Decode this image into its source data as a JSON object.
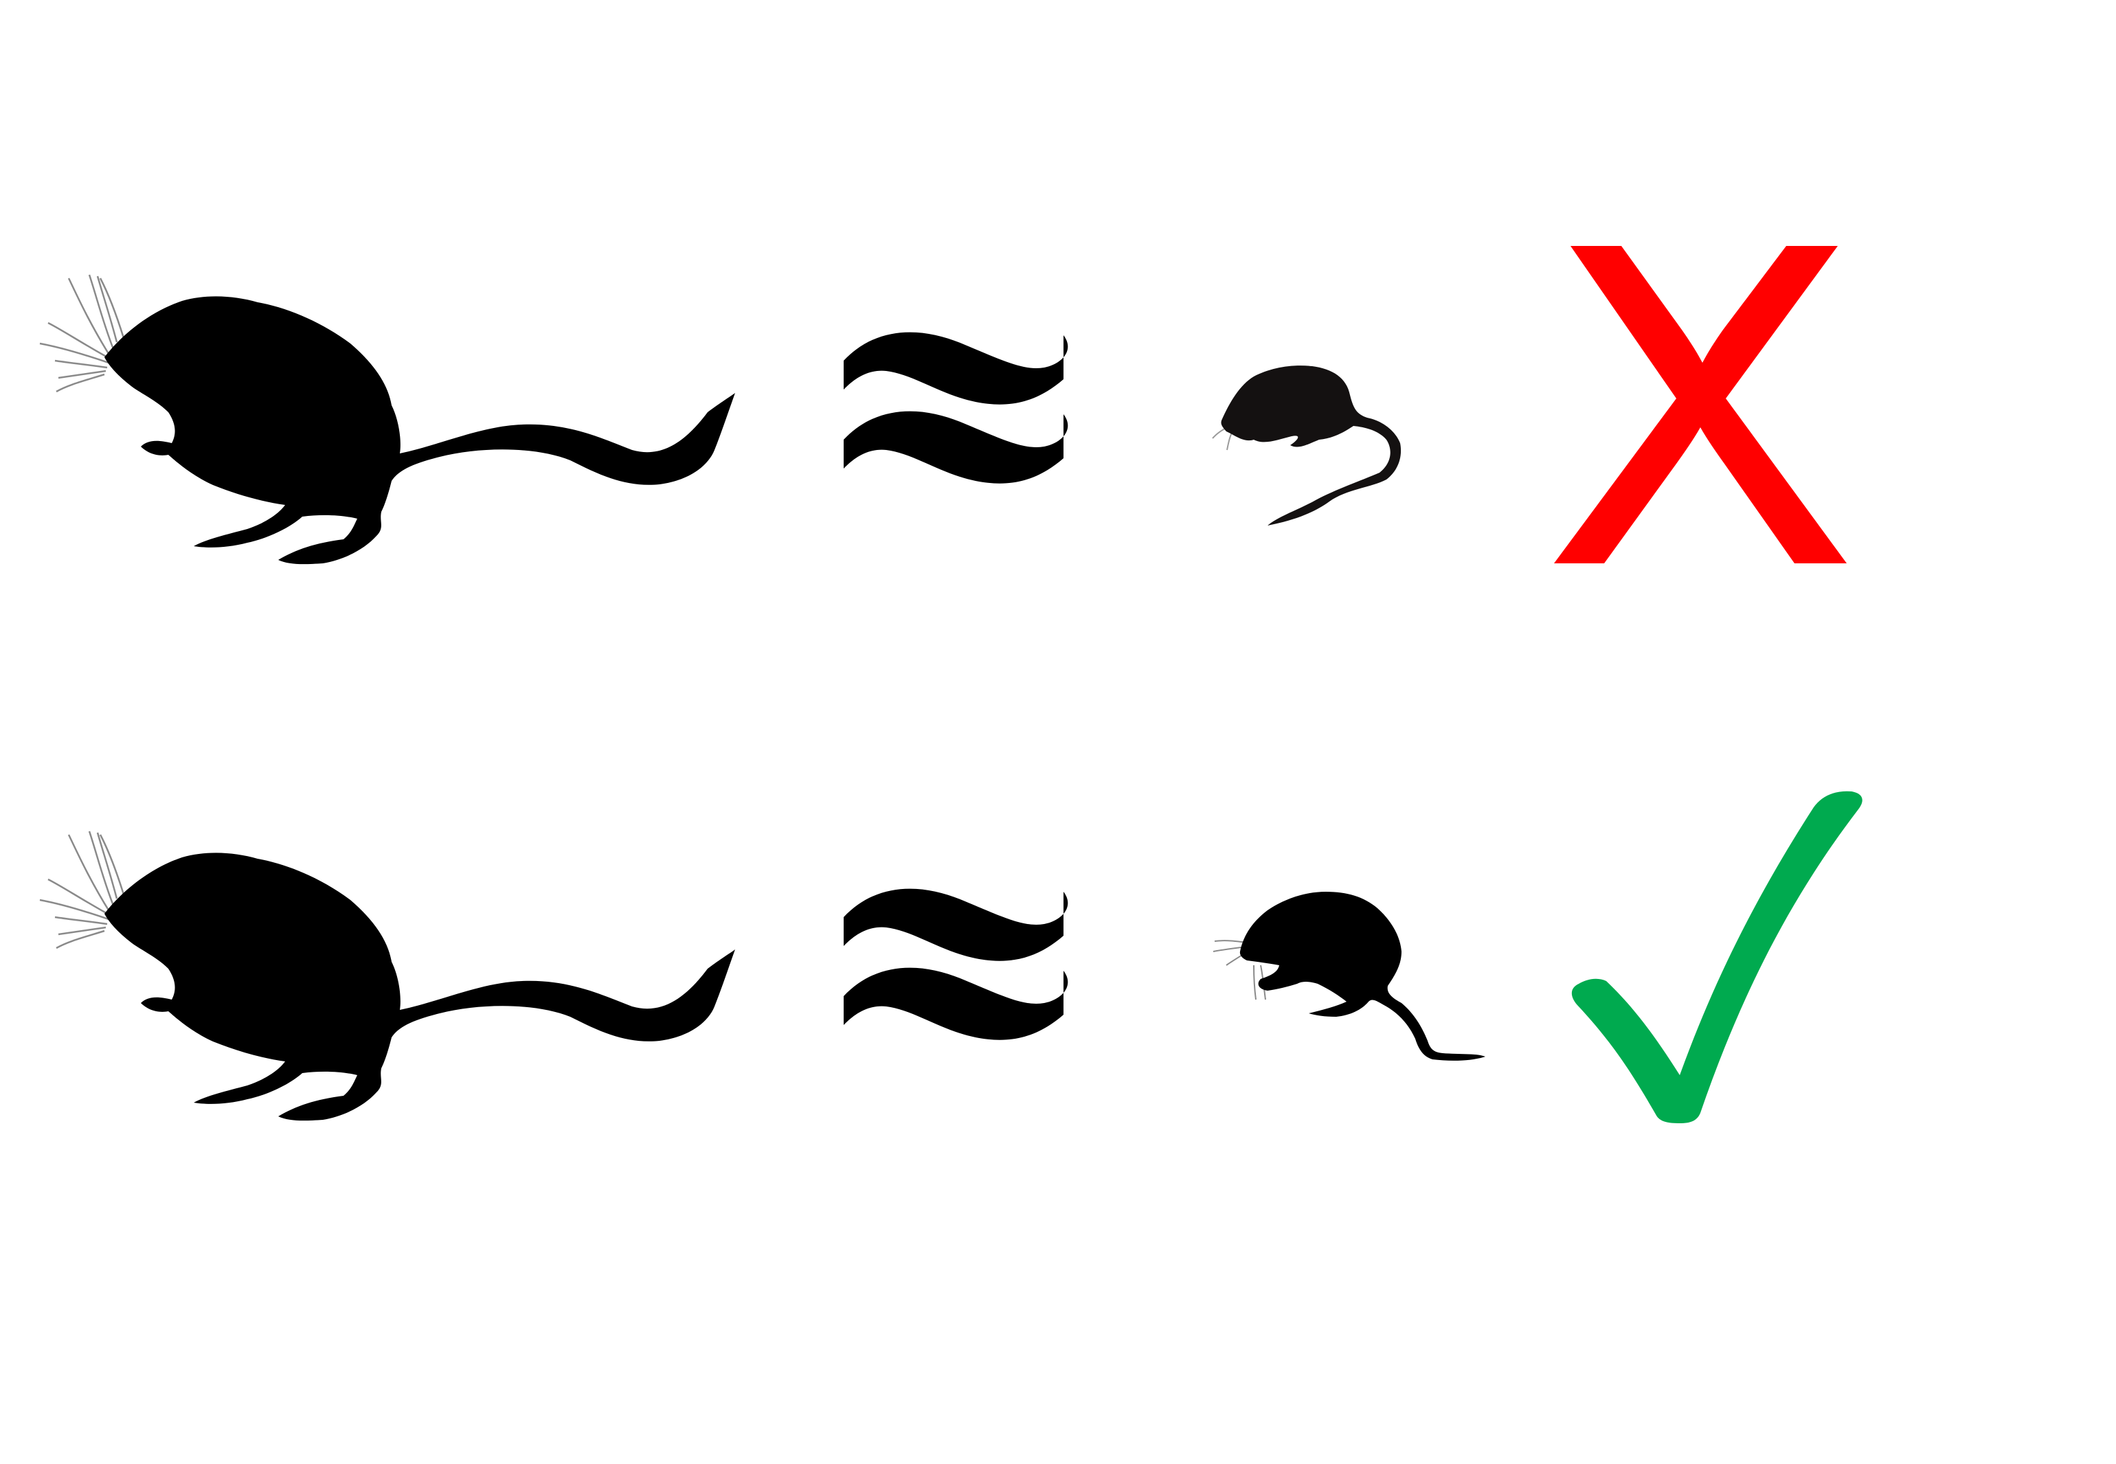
{
  "symbols": {
    "approx": "≈",
    "cross": "X",
    "check": "✓"
  },
  "colors": {
    "silhouette": "#000000",
    "small_silhouette_top": "#141111",
    "cross": "#ff0000",
    "check": "#00aa4f",
    "background": "#ffffff"
  },
  "rows": [
    {
      "left_animal": "large-hopping-rodent-silhouette",
      "relation": "≈",
      "right_animal": "small-long-tailed-rodent-silhouette",
      "verdict": "X"
    },
    {
      "left_animal": "large-hopping-rodent-silhouette",
      "relation": "≈",
      "right_animal": "small-hopping-rodent-silhouette",
      "verdict": "✓"
    }
  ]
}
